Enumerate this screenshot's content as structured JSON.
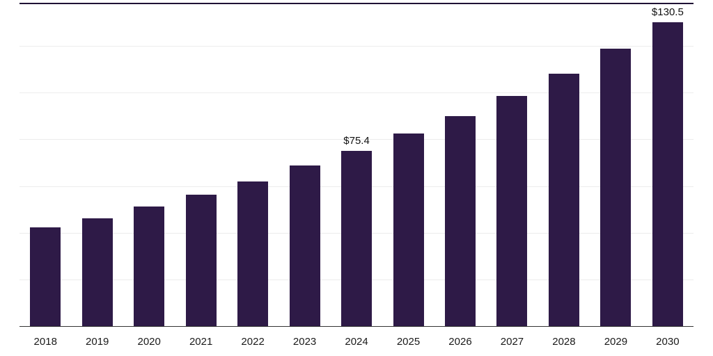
{
  "chart_data": {
    "type": "bar",
    "title": "",
    "xlabel": "",
    "ylabel": "",
    "categories": [
      "2018",
      "2019",
      "2020",
      "2021",
      "2022",
      "2023",
      "2024",
      "2025",
      "2026",
      "2027",
      "2028",
      "2029",
      "2030"
    ],
    "values": [
      42.5,
      46.6,
      51.5,
      56.5,
      62.2,
      69.0,
      75.4,
      82.7,
      90.4,
      98.8,
      108.4,
      119.1,
      130.5
    ],
    "data_labels": {
      "2024": "$75.4",
      "2030": "$130.5"
    },
    "ylim": [
      0,
      140
    ],
    "grid": "horizontal",
    "gridline_step": 20,
    "legend": "none",
    "bar_color": "#2e1a47",
    "gridline_color": "#ececec",
    "axis_line_color": "#333333",
    "top_border_color": "#1f1235"
  }
}
